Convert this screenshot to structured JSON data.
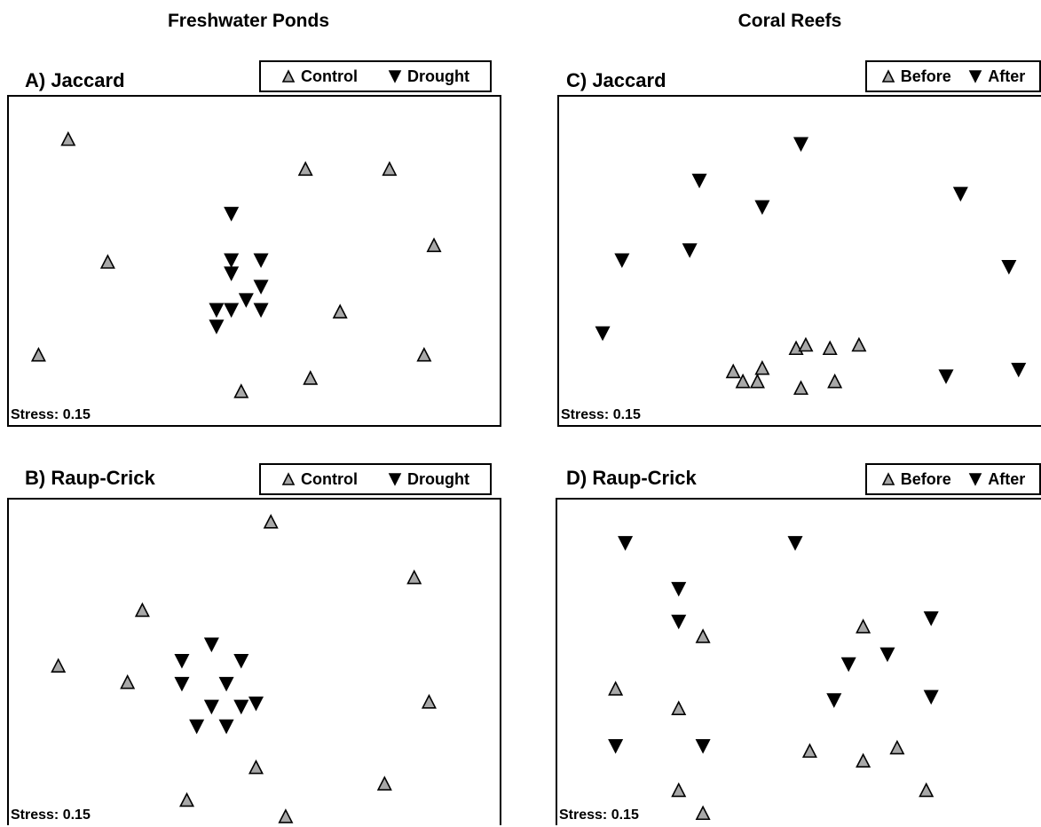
{
  "column_titles": {
    "left": "Freshwater Ponds",
    "right": "Coral Reefs"
  },
  "stress_label": "Stress: 0.15",
  "legends": {
    "ponds": {
      "control": "Control",
      "drought": "Drought"
    },
    "reefs": {
      "before": "Before",
      "after": "After"
    }
  },
  "colors": {
    "up_fill": "#a8a8a8",
    "down_fill": "#000000",
    "outline": "#000000"
  },
  "chart_data": [
    {
      "type": "scatter",
      "title": "A) Jaccard",
      "xlim": [
        0,
        100
      ],
      "ylim": [
        0,
        100
      ],
      "series": [
        {
          "name": "Control",
          "marker": "triangle-up",
          "points": [
            [
              12,
              87
            ],
            [
              60,
              78
            ],
            [
              77,
              78
            ],
            [
              20,
              50
            ],
            [
              86,
              55
            ],
            [
              67,
              35
            ],
            [
              6,
              22
            ],
            [
              84,
              22
            ],
            [
              61,
              15
            ],
            [
              47,
              11
            ]
          ]
        },
        {
          "name": "Drought",
          "marker": "triangle-down",
          "points": [
            [
              45,
              65
            ],
            [
              45,
              51
            ],
            [
              51,
              51
            ],
            [
              45,
              47
            ],
            [
              51,
              43
            ],
            [
              48,
              39
            ],
            [
              42,
              36
            ],
            [
              45,
              36
            ],
            [
              51,
              36
            ],
            [
              42,
              31
            ]
          ]
        }
      ]
    },
    {
      "type": "scatter",
      "title": "C) Jaccard",
      "xlim": [
        0,
        100
      ],
      "ylim": [
        0,
        100
      ],
      "series": [
        {
          "name": "Before",
          "marker": "triangle-up",
          "points": [
            [
              49,
              24
            ],
            [
              51,
              25
            ],
            [
              56,
              24
            ],
            [
              62,
              25
            ],
            [
              36,
              17
            ],
            [
              42,
              18
            ],
            [
              38,
              14
            ],
            [
              41,
              14
            ],
            [
              50,
              12
            ],
            [
              57,
              14
            ]
          ]
        },
        {
          "name": "After",
          "marker": "triangle-down",
          "points": [
            [
              50,
              86
            ],
            [
              29,
              75
            ],
            [
              83,
              71
            ],
            [
              42,
              67
            ],
            [
              27,
              54
            ],
            [
              13,
              51
            ],
            [
              93,
              49
            ],
            [
              9,
              29
            ],
            [
              80,
              16
            ],
            [
              95,
              18
            ]
          ]
        }
      ]
    },
    {
      "type": "scatter",
      "title": "B) Raup-Crick",
      "xlim": [
        0,
        100
      ],
      "ylim": [
        0,
        100
      ],
      "series": [
        {
          "name": "Control",
          "marker": "triangle-up",
          "points": [
            [
              53,
              93
            ],
            [
              82,
              76
            ],
            [
              27,
              66
            ],
            [
              10,
              49
            ],
            [
              24,
              44
            ],
            [
              85,
              38
            ],
            [
              50,
              18
            ],
            [
              76,
              13
            ],
            [
              36,
              8
            ],
            [
              56,
              3
            ]
          ]
        },
        {
          "name": "Drought",
          "marker": "triangle-down",
          "points": [
            [
              41,
              56
            ],
            [
              35,
              51
            ],
            [
              47,
              51
            ],
            [
              35,
              44
            ],
            [
              44,
              44
            ],
            [
              50,
              38
            ],
            [
              41,
              37
            ],
            [
              47,
              37
            ],
            [
              38,
              31
            ],
            [
              44,
              31
            ]
          ]
        }
      ]
    },
    {
      "type": "scatter",
      "title": "D) Raup-Crick",
      "xlim": [
        0,
        100
      ],
      "ylim": [
        0,
        100
      ],
      "series": [
        {
          "name": "Before",
          "marker": "triangle-up",
          "points": [
            [
              30,
              58
            ],
            [
              63,
              61
            ],
            [
              12,
              42
            ],
            [
              25,
              36
            ],
            [
              70,
              24
            ],
            [
              52,
              23
            ],
            [
              63,
              20
            ],
            [
              25,
              11
            ],
            [
              30,
              4
            ],
            [
              76,
              11
            ]
          ]
        },
        {
          "name": "After",
          "marker": "triangle-down",
          "points": [
            [
              14,
              87
            ],
            [
              49,
              87
            ],
            [
              25,
              73
            ],
            [
              77,
              64
            ],
            [
              68,
              53
            ],
            [
              60,
              50
            ],
            [
              25,
              63
            ],
            [
              77,
              40
            ],
            [
              57,
              39
            ],
            [
              12,
              25
            ],
            [
              30,
              25
            ]
          ]
        }
      ]
    }
  ]
}
